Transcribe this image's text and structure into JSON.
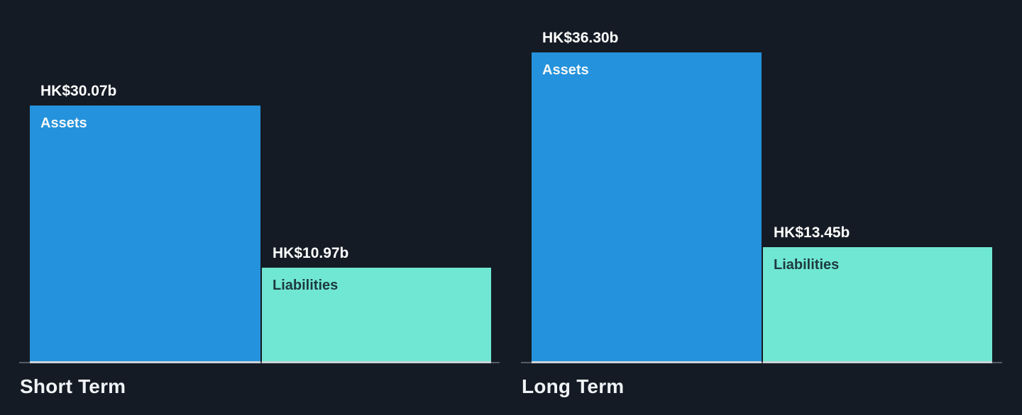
{
  "page": {
    "background": "#151b24"
  },
  "colors": {
    "assets_bar": "#2492dc",
    "liabilities_bar": "#70e7d2",
    "axis_line": "#525c68",
    "axis_line_under_bars": "#ccd2d8",
    "value_label_text": "#ffffff",
    "assets_label_text": "#f5f8fa",
    "liabilities_label_text": "#1d3a40",
    "title_text": "#f0f3f5"
  },
  "chart_data": [
    {
      "type": "bar",
      "title": "Short Term",
      "categories": [
        "Assets",
        "Liabilities"
      ],
      "values": [
        30.07,
        10.97
      ],
      "currency": "HK$",
      "unit": "billions",
      "ylim": [
        0,
        42.5
      ],
      "grid": false,
      "legend": "none (category labels rendered inside bars, values above bars)",
      "bars": [
        {
          "name": "Assets",
          "value": 30.07,
          "value_label": "HK$30.07b",
          "color": "#2492dc",
          "text_color": "#f5f8fa"
        },
        {
          "name": "Liabilities",
          "value": 10.97,
          "value_label": "HK$10.97b",
          "color": "#70e7d2",
          "text_color": "#1d3a40"
        }
      ]
    },
    {
      "type": "bar",
      "title": "Long Term",
      "categories": [
        "Assets",
        "Liabilities"
      ],
      "values": [
        36.3,
        13.45
      ],
      "currency": "HK$",
      "unit": "billions",
      "ylim": [
        0,
        42.5
      ],
      "grid": false,
      "legend": "none (category labels rendered inside bars, values above bars)",
      "bars": [
        {
          "name": "Assets",
          "value": 36.3,
          "value_label": "HK$36.30b",
          "color": "#2492dc",
          "text_color": "#f5f8fa"
        },
        {
          "name": "Liabilities",
          "value": 13.45,
          "value_label": "HK$13.45b",
          "color": "#70e7d2",
          "text_color": "#1d3a40"
        }
      ]
    }
  ]
}
